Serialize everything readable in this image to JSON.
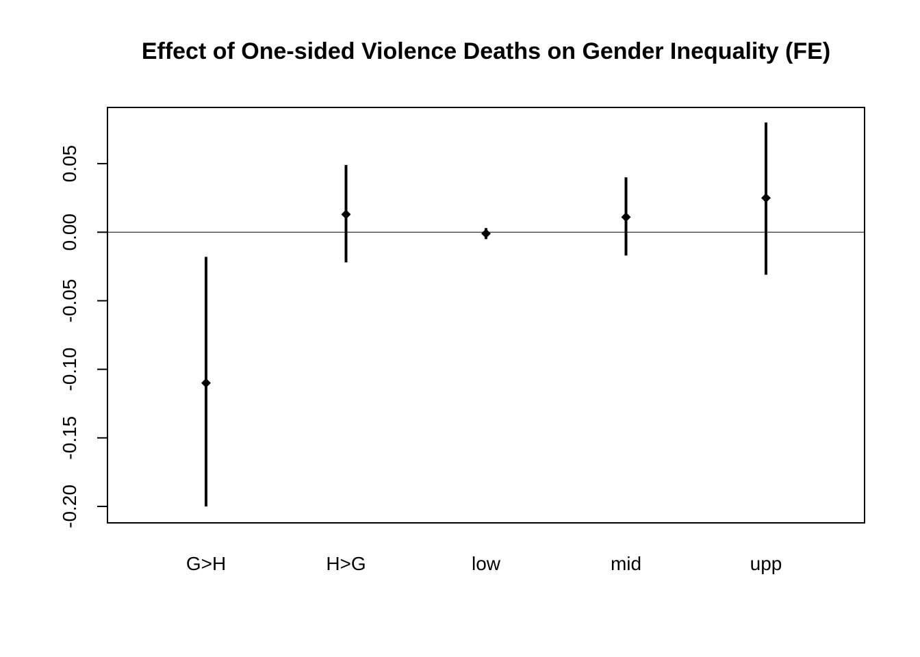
{
  "chart_data": {
    "type": "errorbar",
    "title": "Effect of One-sided Violence Deaths on Gender Inequality (FE)",
    "xlabel": "",
    "ylabel": "",
    "categories": [
      "G>H",
      "H>G",
      "low",
      "mid",
      "upp"
    ],
    "series": [
      {
        "estimate": [
          -0.11,
          0.013,
          -0.001,
          0.011,
          0.025
        ],
        "lower": [
          -0.2,
          -0.022,
          -0.005,
          -0.017,
          -0.031
        ],
        "upper": [
          -0.018,
          0.049,
          0.003,
          0.04,
          0.08
        ]
      }
    ],
    "ylim": [
      -0.212,
      0.091
    ],
    "yticks": [
      -0.2,
      -0.15,
      -0.1,
      -0.05,
      0.0,
      0.05
    ],
    "ytick_labels": [
      "-0.20",
      "-0.15",
      "-0.10",
      "-0.05",
      "0.00",
      "0.05"
    ],
    "reference_line": 0,
    "grid": false,
    "legend": "none"
  }
}
